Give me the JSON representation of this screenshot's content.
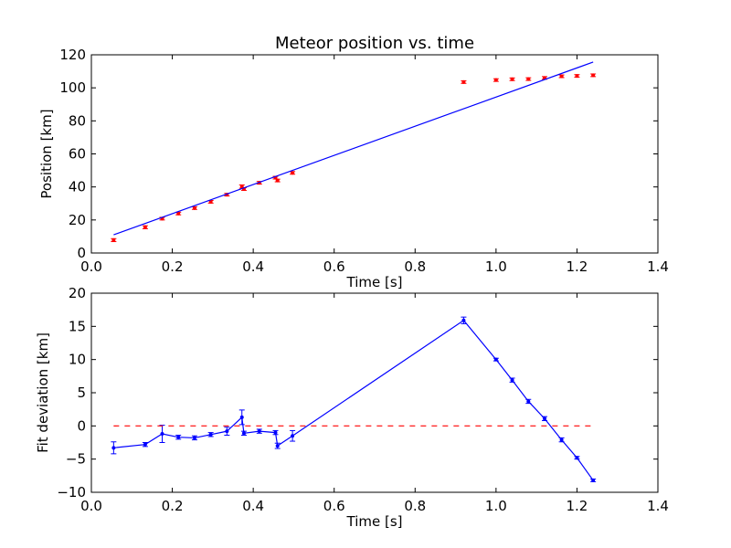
{
  "chart_data": [
    {
      "type": "scatter",
      "title": "Meteor position vs. time",
      "xlabel": "Time [s]",
      "ylabel": "Position [km]",
      "xlim": [
        0.0,
        1.4
      ],
      "ylim": [
        0,
        120
      ],
      "xticks": [
        "0.0",
        "0.2",
        "0.4",
        "0.6",
        "0.8",
        "1.0",
        "1.2",
        "1.4"
      ],
      "yticks": [
        "0",
        "20",
        "40",
        "60",
        "80",
        "100",
        "120"
      ],
      "grid": false,
      "series": [
        {
          "style": "points-with-errorbars",
          "color": "#ff0000",
          "x": [
            0.055,
            0.133,
            0.175,
            0.215,
            0.255,
            0.295,
            0.335,
            0.372,
            0.377,
            0.415,
            0.455,
            0.46,
            0.497,
            0.92,
            1.0,
            1.04,
            1.08,
            1.12,
            1.162,
            1.2,
            1.24
          ],
          "y": [
            7.8,
            15.6,
            20.8,
            23.9,
            27.2,
            31.0,
            35.3,
            40.2,
            38.7,
            42.5,
            45.6,
            43.9,
            48.5,
            103.5,
            104.7,
            105.2,
            105.3,
            106.0,
            107.0,
            107.2,
            107.6
          ],
          "err": [
            0.9,
            0.9,
            0.8,
            0.8,
            0.8,
            0.8,
            0.8,
            1.0,
            0.8,
            0.8,
            0.8,
            0.8,
            0.8,
            0.8,
            0.8,
            0.8,
            0.8,
            0.8,
            0.8,
            0.8,
            0.8
          ]
        },
        {
          "style": "line",
          "color": "#0000ff",
          "x": [
            0.055,
            1.24
          ],
          "y": [
            11.0,
            115.6
          ]
        }
      ]
    },
    {
      "type": "line",
      "title": "",
      "xlabel": "Time [s]",
      "ylabel": "Fit deviation [km]",
      "xlim": [
        0.0,
        1.4
      ],
      "ylim": [
        -10,
        20
      ],
      "xticks": [
        "0.0",
        "0.2",
        "0.4",
        "0.6",
        "0.8",
        "1.0",
        "1.2",
        "1.4"
      ],
      "yticks": [
        "−10",
        "−5",
        "0",
        "5",
        "10",
        "15",
        "20"
      ],
      "grid": false,
      "series": [
        {
          "style": "line-with-errorbars",
          "color": "#0000ff",
          "x": [
            0.055,
            0.133,
            0.175,
            0.215,
            0.255,
            0.295,
            0.335,
            0.372,
            0.377,
            0.415,
            0.455,
            0.46,
            0.497,
            0.92,
            1.0,
            1.04,
            1.08,
            1.12,
            1.162,
            1.2,
            1.24
          ],
          "y": [
            -3.3,
            -2.8,
            -1.2,
            -1.7,
            -1.8,
            -1.3,
            -0.8,
            1.3,
            -1.1,
            -0.8,
            -1.0,
            -3.0,
            -1.5,
            15.9,
            10.0,
            6.9,
            3.7,
            1.1,
            -2.1,
            -4.8,
            -8.2
          ],
          "err": [
            0.9,
            0.3,
            1.3,
            0.3,
            0.3,
            0.3,
            0.6,
            1.1,
            0.3,
            0.3,
            0.3,
            0.4,
            0.8,
            0.5,
            0.2,
            0.3,
            0.3,
            0.3,
            0.3,
            0.2,
            0.2
          ]
        },
        {
          "style": "dashed-line",
          "color": "#ff0000",
          "x": [
            0.055,
            1.24
          ],
          "y": [
            0,
            0
          ]
        }
      ]
    }
  ]
}
